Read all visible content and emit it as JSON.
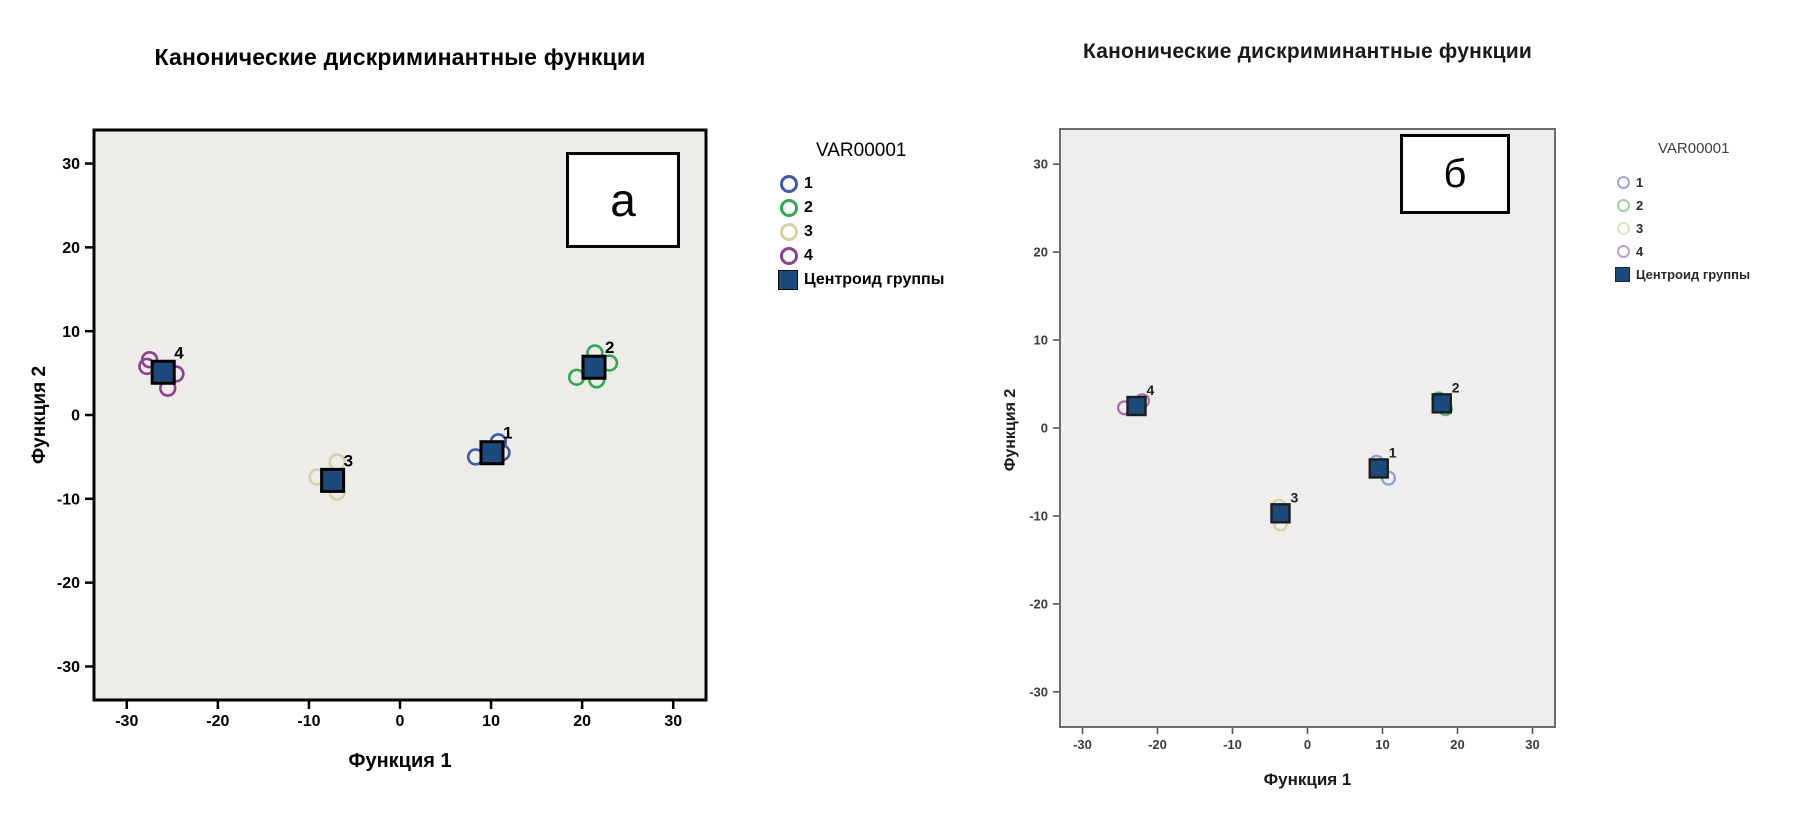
{
  "chart_data": [
    {
      "id": "a",
      "type": "scatter",
      "title": "Канонические дискриминантные функции",
      "xlabel": "Функция 1",
      "ylabel": "Функция 2",
      "inset_label": "а",
      "legend_title": "VAR00001",
      "legend_position": "right",
      "grid": false,
      "x_ticks": [
        -30,
        -20,
        -10,
        0,
        10,
        20,
        30
      ],
      "y_ticks": [
        30,
        20,
        10,
        0,
        -10,
        -20,
        -30
      ],
      "xlim": [
        -33.6,
        33.6
      ],
      "ylim": [
        -34,
        34
      ],
      "plot_bg": "#edece9",
      "centroid_color": "#1c4a7c",
      "legend": [
        {
          "label": "1",
          "marker": "circle",
          "color": "#4058a6"
        },
        {
          "label": "2",
          "marker": "circle",
          "color": "#2fa855"
        },
        {
          "label": "3",
          "marker": "circle",
          "color": "#d7d0a3"
        },
        {
          "label": "4",
          "marker": "circle",
          "color": "#8d3f92"
        },
        {
          "label": "Центроид группы",
          "marker": "square",
          "color": "#1c4a7c"
        }
      ],
      "groups": [
        {
          "name": "1",
          "color": "#4058a6",
          "points": [
            [
              10.8,
              -3.2
            ],
            [
              8.3,
              -5.0
            ],
            [
              11.2,
              -4.5
            ]
          ],
          "centroid": [
            10.1,
            -4.5
          ]
        },
        {
          "name": "2",
          "color": "#2fa855",
          "points": [
            [
              21.4,
              7.4
            ],
            [
              23.0,
              6.2
            ],
            [
              19.4,
              4.5
            ],
            [
              21.6,
              4.2
            ]
          ],
          "centroid": [
            21.3,
            5.7
          ]
        },
        {
          "name": "3",
          "color": "#d7d0a3",
          "points": [
            [
              -6.9,
              -5.6
            ],
            [
              -9.1,
              -7.4
            ],
            [
              -6.9,
              -9.2
            ]
          ],
          "centroid": [
            -7.4,
            -7.8
          ]
        },
        {
          "name": "4",
          "color": "#8d3f92",
          "points": [
            [
              -27.5,
              6.6
            ],
            [
              -27.8,
              5.8
            ],
            [
              -24.6,
              4.9
            ],
            [
              -25.5,
              3.2
            ]
          ],
          "centroid": [
            -26.0,
            5.1
          ]
        }
      ]
    },
    {
      "id": "b",
      "type": "scatter",
      "title": "Канонические дискриминантные функции",
      "xlabel": "Функция 1",
      "ylabel": "Функция 2",
      "inset_label": "б",
      "legend_title": "VAR00001",
      "legend_position": "right",
      "grid": false,
      "x_ticks": [
        -30,
        -20,
        -10,
        0,
        10,
        20,
        30
      ],
      "y_ticks": [
        30,
        20,
        10,
        0,
        -10,
        -20,
        -30
      ],
      "xlim": [
        -33,
        33
      ],
      "ylim": [
        -34,
        34
      ],
      "plot_bg": "#efeeec",
      "centroid_color": "#1c4a7c",
      "legend": [
        {
          "label": "1",
          "marker": "circle",
          "color": "#9aa8d8"
        },
        {
          "label": "2",
          "marker": "circle",
          "color": "#9dd3a8"
        },
        {
          "label": "3",
          "marker": "circle",
          "color": "#e6e0c6"
        },
        {
          "label": "4",
          "marker": "circle",
          "color": "#c49ccf"
        },
        {
          "label": "Центроид группы",
          "marker": "square",
          "color": "#1c4a7c"
        }
      ],
      "groups": [
        {
          "name": "1",
          "color": "#8e9fd4",
          "points": [
            [
              10.8,
              -5.7
            ],
            [
              9.2,
              -3.9
            ]
          ],
          "centroid": [
            9.5,
            -4.6
          ]
        },
        {
          "name": "2",
          "color": "#56b476",
          "points": [
            [
              17.5,
              3.3
            ],
            [
              18.4,
              2.2
            ]
          ],
          "centroid": [
            17.9,
            2.8
          ]
        },
        {
          "name": "3",
          "color": "#d9d2a9",
          "points": [
            [
              -3.6,
              -10.9
            ],
            [
              -3.8,
              -8.9
            ]
          ],
          "centroid": [
            -3.6,
            -9.7
          ]
        },
        {
          "name": "4",
          "color": "#a76fb3",
          "points": [
            [
              -24.4,
              2.3
            ],
            [
              -22.0,
              3.1
            ]
          ],
          "centroid": [
            -22.8,
            2.5
          ]
        }
      ]
    }
  ]
}
